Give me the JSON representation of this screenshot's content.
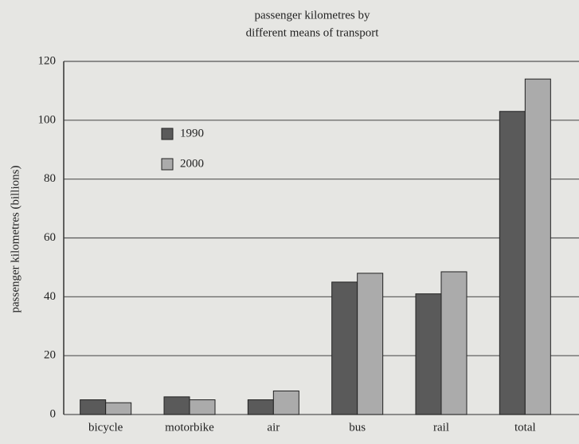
{
  "chart_data": {
    "type": "bar",
    "title": [
      "passenger kilometres by",
      "different  means of transport"
    ],
    "y_label": "passenger kilometres (billions)",
    "categories": [
      "bicycle",
      "motorbike",
      "air",
      "bus",
      "rail",
      "total"
    ],
    "series": [
      {
        "name": "1990",
        "color": "#5a5a5a",
        "values": [
          5,
          6,
          5,
          45,
          41,
          103
        ]
      },
      {
        "name": "2000",
        "color": "#ababab",
        "values": [
          4,
          5,
          8,
          48,
          48.5,
          114
        ]
      }
    ],
    "ylim": [
      0,
      120
    ],
    "yticks": [
      0,
      20,
      40,
      60,
      80,
      100,
      120
    ],
    "grid": true
  }
}
